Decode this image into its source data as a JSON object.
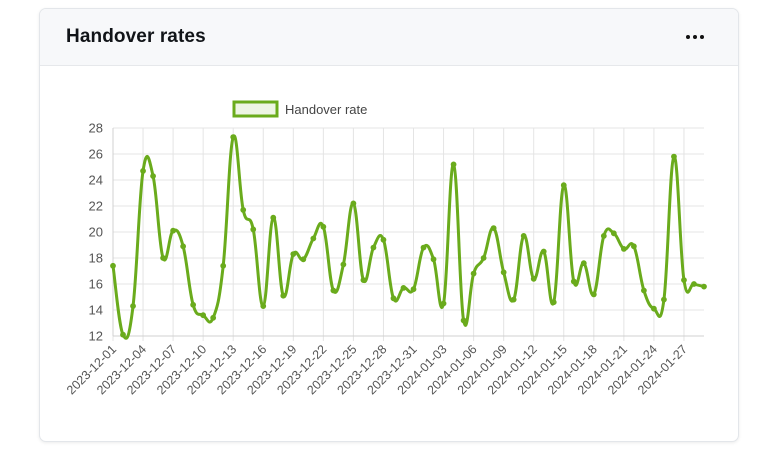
{
  "card": {
    "title": "Handover rates",
    "menu_icon": "more-horizontal-icon"
  },
  "colors": {
    "line": "#6aab1c",
    "grid": "#e4e4e4",
    "text": "#555555"
  },
  "chart_data": {
    "type": "line",
    "title": "",
    "xlabel": "",
    "ylabel": "",
    "ylim": [
      12,
      28
    ],
    "yticks": [
      12,
      14,
      16,
      18,
      20,
      22,
      24,
      26,
      28
    ],
    "legend": {
      "label": "Handover rate",
      "position": "top"
    },
    "tick_labels": [
      "2023-12-01",
      "2023-12-04",
      "2023-12-07",
      "2023-12-10",
      "2023-12-13",
      "2023-12-16",
      "2023-12-19",
      "2023-12-22",
      "2023-12-25",
      "2023-12-28",
      "2023-12-31",
      "2024-01-03",
      "2024-01-06",
      "2024-01-09",
      "2024-01-12",
      "2024-01-15",
      "2024-01-18",
      "2024-01-21",
      "2024-01-24",
      "2024-01-27"
    ],
    "series": [
      {
        "name": "Handover rate",
        "values": [
          17.4,
          12.1,
          14.3,
          24.7,
          24.3,
          18.0,
          20.1,
          18.9,
          14.4,
          13.6,
          13.4,
          17.4,
          27.3,
          21.7,
          20.2,
          14.3,
          21.1,
          15.1,
          18.3,
          17.9,
          19.5,
          20.4,
          15.5,
          17.5,
          22.2,
          16.3,
          18.8,
          19.4,
          14.9,
          15.7,
          15.6,
          18.8,
          17.9,
          14.5,
          25.2,
          13.2,
          16.8,
          18.0,
          20.3,
          16.9,
          14.8,
          19.7,
          16.4,
          18.5,
          14.6,
          23.6,
          16.2,
          17.6,
          15.2,
          19.7,
          19.9,
          18.7,
          18.9,
          15.5,
          14.1,
          14.8,
          25.8,
          16.3,
          16.0,
          15.8
        ]
      }
    ]
  }
}
